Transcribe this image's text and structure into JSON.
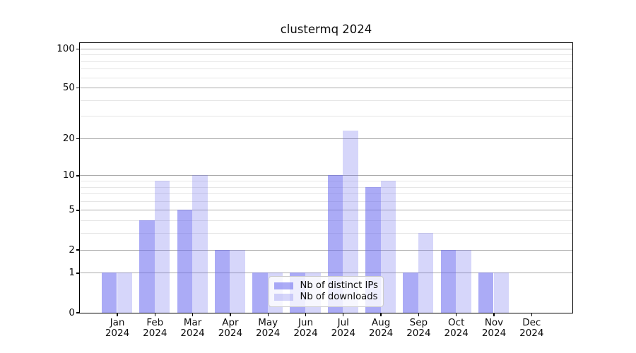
{
  "figure_title": "clustermq 2024",
  "chart_data": {
    "type": "bar",
    "title": "clustermq 2024",
    "categories": [
      "Jan",
      "Feb",
      "Mar",
      "Apr",
      "May",
      "Jun",
      "Jul",
      "Aug",
      "Sep",
      "Oct",
      "Nov",
      "Dec"
    ],
    "category_year": "2024",
    "series": [
      {
        "name": "Nb of distinct IPs",
        "values": [
          1,
          4,
          5,
          2,
          1,
          1,
          10,
          8,
          1,
          2,
          1,
          0
        ],
        "fill": "rgba(102,102,238,0.55)"
      },
      {
        "name": "Nb of downloads",
        "values": [
          1,
          9,
          10,
          2,
          1,
          1,
          23,
          9,
          3,
          2,
          1,
          0
        ],
        "fill": "rgba(102,102,238,0.27)"
      }
    ],
    "yscale": "log10(1+x)",
    "ylim": [
      0,
      111
    ],
    "y_major_ticks": [
      0,
      1,
      2,
      5,
      10,
      20,
      50,
      100
    ],
    "y_minor_gridlines": [
      3,
      4,
      6,
      7,
      8,
      9,
      30,
      40,
      60,
      70,
      80,
      90
    ],
    "grid": "horizontal",
    "legend_position": "lower-center"
  },
  "colors": {
    "bar_distinct_ips": "#aaaaf2",
    "bar_downloads": "#d8d8f8",
    "grid_major": "#ababab",
    "grid_minor": "#e6e6e6",
    "frame": "#000000",
    "background": "#ffffff"
  }
}
